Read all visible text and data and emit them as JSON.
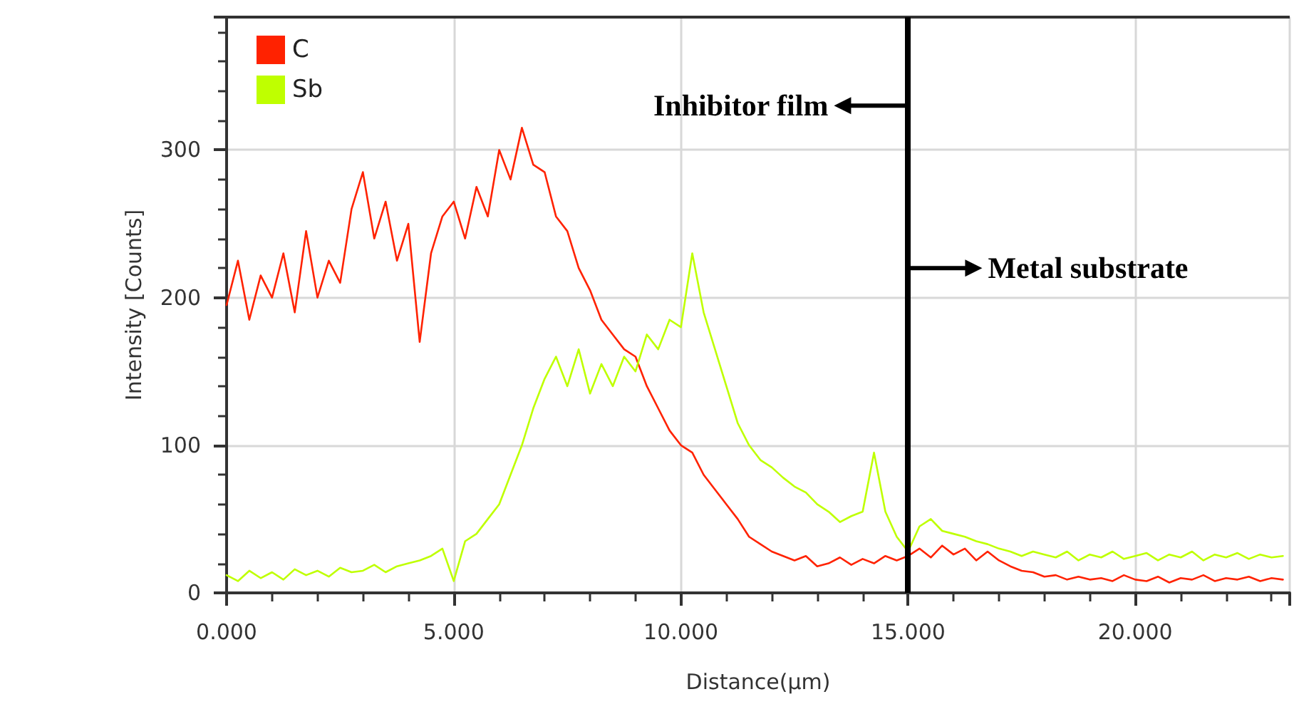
{
  "chart_data": {
    "type": "line",
    "xlabel": "Distance(μm)",
    "ylabel": "Intensity [Counts]",
    "x": [
      0,
      0.25,
      0.5,
      0.75,
      1,
      1.25,
      1.5,
      1.75,
      2,
      2.25,
      2.5,
      2.75,
      3,
      3.25,
      3.5,
      3.75,
      4,
      4.25,
      4.5,
      4.75,
      5,
      5.25,
      5.5,
      5.75,
      6,
      6.25,
      6.5,
      6.75,
      7,
      7.25,
      7.5,
      7.75,
      8,
      8.25,
      8.5,
      8.75,
      9,
      9.25,
      9.5,
      9.75,
      10,
      10.25,
      10.5,
      10.75,
      11,
      11.25,
      11.5,
      11.75,
      12,
      12.25,
      12.5,
      12.75,
      13,
      13.25,
      13.5,
      13.75,
      14,
      14.25,
      14.5,
      14.75,
      15,
      15.25,
      15.5,
      15.75,
      16,
      16.25,
      16.5,
      16.75,
      17,
      17.25,
      17.5,
      17.75,
      18,
      18.25,
      18.5,
      18.75,
      19,
      19.25,
      19.5,
      19.75,
      20,
      20.25,
      20.5,
      20.75,
      21,
      21.25,
      21.5,
      21.75,
      22,
      22.25,
      22.5,
      22.75,
      23,
      23.25
    ],
    "series": [
      {
        "name": "C",
        "color": "#ff2200",
        "values": [
          195,
          225,
          185,
          215,
          200,
          230,
          190,
          245,
          200,
          225,
          210,
          260,
          285,
          240,
          265,
          225,
          250,
          170,
          230,
          255,
          265,
          240,
          275,
          255,
          300,
          280,
          315,
          290,
          285,
          255,
          245,
          220,
          205,
          185,
          175,
          165,
          160,
          140,
          125,
          110,
          100,
          95,
          80,
          70,
          60,
          50,
          38,
          33,
          28,
          25,
          22,
          25,
          18,
          20,
          24,
          19,
          23,
          20,
          25,
          22,
          25,
          30,
          24,
          32,
          26,
          30,
          22,
          28,
          22,
          18,
          15,
          14,
          11,
          12,
          9,
          11,
          9,
          10,
          8,
          12,
          9,
          8,
          11,
          7,
          10,
          9,
          12,
          8,
          10,
          9,
          11,
          8,
          10,
          9
        ]
      },
      {
        "name": "Sb",
        "color": "#bfff00",
        "values": [
          12,
          8,
          15,
          10,
          14,
          9,
          16,
          12,
          15,
          11,
          17,
          14,
          15,
          19,
          14,
          18,
          20,
          22,
          25,
          30,
          8,
          35,
          40,
          50,
          60,
          80,
          100,
          125,
          145,
          160,
          140,
          165,
          135,
          155,
          140,
          160,
          150,
          175,
          165,
          185,
          180,
          230,
          190,
          165,
          140,
          115,
          100,
          90,
          85,
          78,
          72,
          68,
          60,
          55,
          48,
          52,
          55,
          95,
          55,
          38,
          28,
          45,
          50,
          42,
          40,
          38,
          35,
          33,
          30,
          28,
          25,
          28,
          26,
          24,
          28,
          22,
          26,
          24,
          28,
          23,
          25,
          27,
          22,
          26,
          24,
          28,
          22,
          26,
          24,
          27,
          23,
          26,
          24,
          25
        ]
      }
    ],
    "xlim": [
      0,
      23.4
    ],
    "ylim": [
      0,
      390
    ],
    "xticks": [
      {
        "value": 0,
        "label": "0.000"
      },
      {
        "value": 5,
        "label": "5.000"
      },
      {
        "value": 10,
        "label": "10.000"
      },
      {
        "value": 15,
        "label": "15.000"
      },
      {
        "value": 20,
        "label": "20.000"
      }
    ],
    "yticks": [
      0,
      100,
      200,
      300
    ],
    "grid": true,
    "legend": "top left",
    "marker": "none",
    "line_style": "solid",
    "ref_lines": [
      {
        "axis": "x",
        "value": 15,
        "color": "#000000"
      }
    ],
    "annotations": [
      {
        "text": "Inhibitor film",
        "x": 15,
        "y": 330
      },
      {
        "text": "Metal substrate",
        "x": 15,
        "y": 220
      }
    ]
  }
}
